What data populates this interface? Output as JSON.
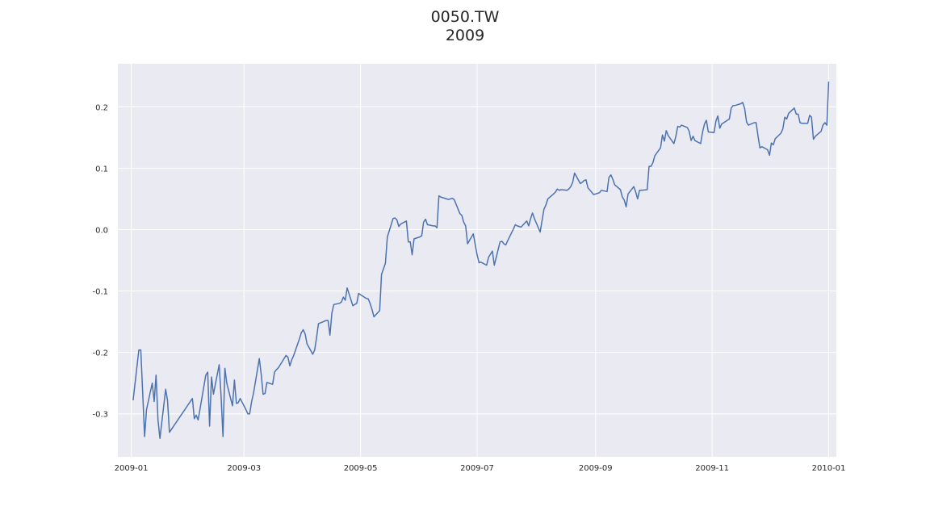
{
  "title_line1": "0050.TW",
  "title_line2": "2009",
  "chart_data": {
    "type": "line",
    "title": "0050.TW 2009",
    "xlabel": "",
    "ylabel": "",
    "x_range": [
      "2008-12-25",
      "2010-01-05"
    ],
    "ylim": [
      -0.37,
      0.27
    ],
    "grid": true,
    "x_tick_labels": [
      "2009-01",
      "2009-03",
      "2009-05",
      "2009-07",
      "2009-09",
      "2009-11",
      "2010-01"
    ],
    "y_tick_labels": [
      "-0.3",
      "-0.2",
      "-0.1",
      "0.0",
      "0.1",
      "0.2"
    ],
    "series": [
      {
        "color": "#4c72b0",
        "points": [
          [
            "2009-01-02",
            -0.278
          ],
          [
            "2009-01-05",
            -0.196
          ],
          [
            "2009-01-06",
            -0.196
          ],
          [
            "2009-01-07",
            -0.267
          ],
          [
            "2009-01-08",
            -0.337
          ],
          [
            "2009-01-09",
            -0.293
          ],
          [
            "2009-01-12",
            -0.25
          ],
          [
            "2009-01-13",
            -0.28
          ],
          [
            "2009-01-14",
            -0.237
          ],
          [
            "2009-01-15",
            -0.31
          ],
          [
            "2009-01-16",
            -0.34
          ],
          [
            "2009-01-19",
            -0.26
          ],
          [
            "2009-01-20",
            -0.278
          ],
          [
            "2009-01-21",
            -0.33
          ],
          [
            "2009-02-02",
            -0.275
          ],
          [
            "2009-02-03",
            -0.308
          ],
          [
            "2009-02-04",
            -0.302
          ],
          [
            "2009-02-05",
            -0.31
          ],
          [
            "2009-02-06",
            -0.292
          ],
          [
            "2009-02-09",
            -0.237
          ],
          [
            "2009-02-10",
            -0.232
          ],
          [
            "2009-02-11",
            -0.32
          ],
          [
            "2009-02-12",
            -0.24
          ],
          [
            "2009-02-13",
            -0.268
          ],
          [
            "2009-02-16",
            -0.22
          ],
          [
            "2009-02-17",
            -0.27
          ],
          [
            "2009-02-18",
            -0.337
          ],
          [
            "2009-02-19",
            -0.226
          ],
          [
            "2009-02-20",
            -0.25
          ],
          [
            "2009-02-23",
            -0.287
          ],
          [
            "2009-02-24",
            -0.245
          ],
          [
            "2009-02-25",
            -0.283
          ],
          [
            "2009-02-26",
            -0.282
          ],
          [
            "2009-02-27",
            -0.275
          ],
          [
            "2009-03-02",
            -0.293
          ],
          [
            "2009-03-03",
            -0.3
          ],
          [
            "2009-03-04",
            -0.3
          ],
          [
            "2009-03-05",
            -0.28
          ],
          [
            "2009-03-06",
            -0.266
          ],
          [
            "2009-03-09",
            -0.21
          ],
          [
            "2009-03-10",
            -0.235
          ],
          [
            "2009-03-11",
            -0.268
          ],
          [
            "2009-03-12",
            -0.267
          ],
          [
            "2009-03-13",
            -0.249
          ],
          [
            "2009-03-16",
            -0.252
          ],
          [
            "2009-03-17",
            -0.232
          ],
          [
            "2009-03-18",
            -0.228
          ],
          [
            "2009-03-19",
            -0.225
          ],
          [
            "2009-03-20",
            -0.22
          ],
          [
            "2009-03-23",
            -0.205
          ],
          [
            "2009-03-24",
            -0.208
          ],
          [
            "2009-03-25",
            -0.222
          ],
          [
            "2009-03-26",
            -0.212
          ],
          [
            "2009-03-27",
            -0.205
          ],
          [
            "2009-03-30",
            -0.178
          ],
          [
            "2009-03-31",
            -0.168
          ],
          [
            "2009-04-01",
            -0.163
          ],
          [
            "2009-04-02",
            -0.17
          ],
          [
            "2009-04-03",
            -0.186
          ],
          [
            "2009-04-06",
            -0.203
          ],
          [
            "2009-04-07",
            -0.196
          ],
          [
            "2009-04-08",
            -0.175
          ],
          [
            "2009-04-09",
            -0.153
          ],
          [
            "2009-04-10",
            -0.152
          ],
          [
            "2009-04-13",
            -0.148
          ],
          [
            "2009-04-14",
            -0.148
          ],
          [
            "2009-04-15",
            -0.172
          ],
          [
            "2009-04-16",
            -0.136
          ],
          [
            "2009-04-17",
            -0.122
          ],
          [
            "2009-04-20",
            -0.12
          ],
          [
            "2009-04-21",
            -0.118
          ],
          [
            "2009-04-22",
            -0.11
          ],
          [
            "2009-04-23",
            -0.115
          ],
          [
            "2009-04-24",
            -0.095
          ],
          [
            "2009-04-27",
            -0.124
          ],
          [
            "2009-04-28",
            -0.122
          ],
          [
            "2009-04-29",
            -0.12
          ],
          [
            "2009-04-30",
            -0.104
          ],
          [
            "2009-05-04",
            -0.112
          ],
          [
            "2009-05-05",
            -0.113
          ],
          [
            "2009-05-06",
            -0.12
          ],
          [
            "2009-05-07",
            -0.13
          ],
          [
            "2009-05-08",
            -0.142
          ],
          [
            "2009-05-11",
            -0.132
          ],
          [
            "2009-05-12",
            -0.073
          ],
          [
            "2009-05-14",
            -0.055
          ],
          [
            "2009-05-15",
            -0.012
          ],
          [
            "2009-05-18",
            0.018
          ],
          [
            "2009-05-19",
            0.019
          ],
          [
            "2009-05-20",
            0.016
          ],
          [
            "2009-05-21",
            0.005
          ],
          [
            "2009-05-22",
            0.009
          ],
          [
            "2009-05-25",
            0.014
          ],
          [
            "2009-05-26",
            -0.02
          ],
          [
            "2009-05-27",
            -0.02
          ],
          [
            "2009-05-28",
            -0.041
          ],
          [
            "2009-05-29",
            -0.015
          ],
          [
            "2009-06-01",
            -0.012
          ],
          [
            "2009-06-02",
            -0.01
          ],
          [
            "2009-06-03",
            0.012
          ],
          [
            "2009-06-04",
            0.017
          ],
          [
            "2009-06-05",
            0.008
          ],
          [
            "2009-06-08",
            0.006
          ],
          [
            "2009-06-09",
            0.006
          ],
          [
            "2009-06-10",
            0.003
          ],
          [
            "2009-06-11",
            0.055
          ],
          [
            "2009-06-12",
            0.053
          ],
          [
            "2009-06-15",
            0.05
          ],
          [
            "2009-06-16",
            0.049
          ],
          [
            "2009-06-17",
            0.05
          ],
          [
            "2009-06-18",
            0.051
          ],
          [
            "2009-06-19",
            0.049
          ],
          [
            "2009-06-22",
            0.026
          ],
          [
            "2009-06-23",
            0.023
          ],
          [
            "2009-06-24",
            0.012
          ],
          [
            "2009-06-25",
            0.006
          ],
          [
            "2009-06-26",
            -0.023
          ],
          [
            "2009-06-29",
            -0.007
          ],
          [
            "2009-06-30",
            -0.024
          ],
          [
            "2009-07-01",
            -0.041
          ],
          [
            "2009-07-02",
            -0.054
          ],
          [
            "2009-07-03",
            -0.053
          ],
          [
            "2009-07-06",
            -0.058
          ],
          [
            "2009-07-07",
            -0.045
          ],
          [
            "2009-07-08",
            -0.04
          ],
          [
            "2009-07-09",
            -0.035
          ],
          [
            "2009-07-10",
            -0.058
          ],
          [
            "2009-07-13",
            -0.02
          ],
          [
            "2009-07-14",
            -0.019
          ],
          [
            "2009-07-15",
            -0.023
          ],
          [
            "2009-07-16",
            -0.025
          ],
          [
            "2009-07-17",
            -0.018
          ],
          [
            "2009-07-20",
            0.001
          ],
          [
            "2009-07-21",
            0.008
          ],
          [
            "2009-07-22",
            0.006
          ],
          [
            "2009-07-23",
            0.005
          ],
          [
            "2009-07-24",
            0.004
          ],
          [
            "2009-07-27",
            0.014
          ],
          [
            "2009-07-28",
            0.006
          ],
          [
            "2009-07-29",
            0.018
          ],
          [
            "2009-07-30",
            0.027
          ],
          [
            "2009-07-31",
            0.018
          ],
          [
            "2009-08-03",
            -0.004
          ],
          [
            "2009-08-04",
            0.015
          ],
          [
            "2009-08-05",
            0.033
          ],
          [
            "2009-08-06",
            0.04
          ],
          [
            "2009-08-07",
            0.05
          ],
          [
            "2009-08-10",
            0.058
          ],
          [
            "2009-08-11",
            0.061
          ],
          [
            "2009-08-12",
            0.066
          ],
          [
            "2009-08-13",
            0.064
          ],
          [
            "2009-08-14",
            0.065
          ],
          [
            "2009-08-17",
            0.064
          ],
          [
            "2009-08-18",
            0.066
          ],
          [
            "2009-08-19",
            0.07
          ],
          [
            "2009-08-20",
            0.077
          ],
          [
            "2009-08-21",
            0.092
          ],
          [
            "2009-08-24",
            0.075
          ],
          [
            "2009-08-25",
            0.077
          ],
          [
            "2009-08-26",
            0.08
          ],
          [
            "2009-08-27",
            0.081
          ],
          [
            "2009-08-28",
            0.068
          ],
          [
            "2009-08-31",
            0.057
          ],
          [
            "2009-09-01",
            0.058
          ],
          [
            "2009-09-02",
            0.059
          ],
          [
            "2009-09-03",
            0.06
          ],
          [
            "2009-09-04",
            0.064
          ],
          [
            "2009-09-07",
            0.062
          ],
          [
            "2009-09-08",
            0.085
          ],
          [
            "2009-09-09",
            0.089
          ],
          [
            "2009-09-10",
            0.082
          ],
          [
            "2009-09-11",
            0.073
          ],
          [
            "2009-09-14",
            0.065
          ],
          [
            "2009-09-15",
            0.053
          ],
          [
            "2009-09-16",
            0.048
          ],
          [
            "2009-09-17",
            0.037
          ],
          [
            "2009-09-18",
            0.058
          ],
          [
            "2009-09-21",
            0.07
          ],
          [
            "2009-09-22",
            0.061
          ],
          [
            "2009-09-23",
            0.05
          ],
          [
            "2009-09-24",
            0.064
          ],
          [
            "2009-09-25",
            0.064
          ],
          [
            "2009-09-28",
            0.065
          ],
          [
            "2009-09-29",
            0.103
          ],
          [
            "2009-09-30",
            0.103
          ],
          [
            "2009-10-01",
            0.109
          ],
          [
            "2009-10-02",
            0.12
          ],
          [
            "2009-10-05",
            0.133
          ],
          [
            "2009-10-06",
            0.154
          ],
          [
            "2009-10-07",
            0.144
          ],
          [
            "2009-10-08",
            0.161
          ],
          [
            "2009-10-09",
            0.153
          ],
          [
            "2009-10-12",
            0.14
          ],
          [
            "2009-10-13",
            0.152
          ],
          [
            "2009-10-14",
            0.168
          ],
          [
            "2009-10-15",
            0.167
          ],
          [
            "2009-10-16",
            0.17
          ],
          [
            "2009-10-19",
            0.166
          ],
          [
            "2009-10-20",
            0.16
          ],
          [
            "2009-10-21",
            0.145
          ],
          [
            "2009-10-22",
            0.152
          ],
          [
            "2009-10-23",
            0.145
          ],
          [
            "2009-10-26",
            0.14
          ],
          [
            "2009-10-27",
            0.159
          ],
          [
            "2009-10-28",
            0.172
          ],
          [
            "2009-10-29",
            0.178
          ],
          [
            "2009-10-30",
            0.159
          ],
          [
            "2009-11-02",
            0.158
          ],
          [
            "2009-11-03",
            0.177
          ],
          [
            "2009-11-04",
            0.185
          ],
          [
            "2009-11-05",
            0.165
          ],
          [
            "2009-11-06",
            0.172
          ],
          [
            "2009-11-09",
            0.178
          ],
          [
            "2009-11-10",
            0.18
          ],
          [
            "2009-11-11",
            0.198
          ],
          [
            "2009-11-12",
            0.202
          ],
          [
            "2009-11-13",
            0.202
          ],
          [
            "2009-11-16",
            0.205
          ],
          [
            "2009-11-17",
            0.207
          ],
          [
            "2009-11-18",
            0.197
          ],
          [
            "2009-11-19",
            0.175
          ],
          [
            "2009-11-20",
            0.17
          ],
          [
            "2009-11-23",
            0.174
          ],
          [
            "2009-11-24",
            0.174
          ],
          [
            "2009-11-25",
            0.152
          ],
          [
            "2009-11-26",
            0.133
          ],
          [
            "2009-11-27",
            0.135
          ],
          [
            "2009-11-30",
            0.13
          ],
          [
            "2009-12-01",
            0.121
          ],
          [
            "2009-12-02",
            0.141
          ],
          [
            "2009-12-03",
            0.138
          ],
          [
            "2009-12-04",
            0.148
          ],
          [
            "2009-12-07",
            0.157
          ],
          [
            "2009-12-08",
            0.164
          ],
          [
            "2009-12-09",
            0.183
          ],
          [
            "2009-12-10",
            0.18
          ],
          [
            "2009-12-11",
            0.189
          ],
          [
            "2009-12-14",
            0.198
          ],
          [
            "2009-12-15",
            0.188
          ],
          [
            "2009-12-16",
            0.188
          ],
          [
            "2009-12-17",
            0.174
          ],
          [
            "2009-12-18",
            0.173
          ],
          [
            "2009-12-21",
            0.173
          ],
          [
            "2009-12-22",
            0.186
          ],
          [
            "2009-12-23",
            0.183
          ],
          [
            "2009-12-24",
            0.147
          ],
          [
            "2009-12-25",
            0.152
          ],
          [
            "2009-12-28",
            0.16
          ],
          [
            "2009-12-29",
            0.17
          ],
          [
            "2009-12-30",
            0.174
          ],
          [
            "2009-12-31",
            0.17
          ],
          [
            "2010-01-01",
            0.241
          ]
        ]
      }
    ]
  }
}
